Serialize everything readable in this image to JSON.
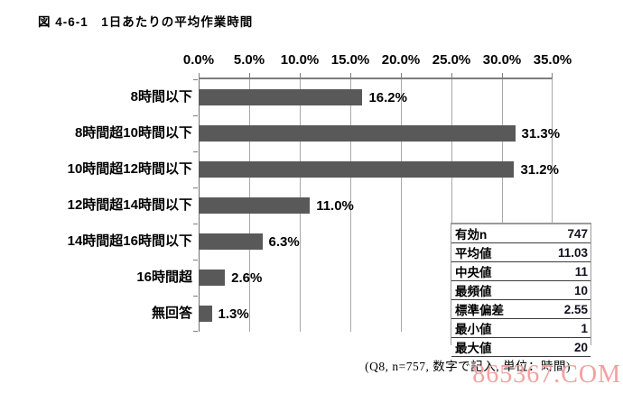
{
  "figure": {
    "title": "図 4-6-1　1日あたりの平均作業時間",
    "footnote": "(Q8, n=757, 数字で記入, 単位：時間)",
    "watermark": "865367.COM"
  },
  "chart_data": {
    "type": "bar",
    "orientation": "horizontal",
    "title": "1日あたりの平均作業時間",
    "categories": [
      "8時間以下",
      "8時間超10時間以下",
      "10時間超12時間以下",
      "12時間超14時間以下",
      "14時間超16時間以下",
      "16時間超",
      "無回答"
    ],
    "values": [
      16.2,
      31.3,
      31.2,
      11.0,
      6.3,
      2.6,
      1.3
    ],
    "value_labels": [
      "16.2%",
      "31.3%",
      "31.2%",
      "11.0%",
      "6.3%",
      "2.6%",
      "1.3%"
    ],
    "xlabel": "",
    "ylabel": "",
    "xlim": [
      0,
      35
    ],
    "x_ticks": [
      0,
      5,
      10,
      15,
      20,
      25,
      30,
      35
    ],
    "x_tick_labels": [
      "0.0%",
      "5.0%",
      "10.0%",
      "15.0%",
      "20.0%",
      "25.0%",
      "30.0%",
      "35.0%"
    ],
    "grid": true,
    "legend": false,
    "bar_color": "#595959"
  },
  "stats_table": {
    "rows": [
      {
        "label": "有効n",
        "value": "747"
      },
      {
        "label": "平均値",
        "value": "11.03"
      },
      {
        "label": "中央値",
        "value": "11"
      },
      {
        "label": "最頻値",
        "value": "10"
      },
      {
        "label": "標準偏差",
        "value": "2.55"
      },
      {
        "label": "最小値",
        "value": "1"
      },
      {
        "label": "最大値",
        "value": "20"
      }
    ]
  },
  "colors": {
    "bar": "#595959",
    "gridline": "#a8a8a8",
    "axis": "#7d7d7d",
    "watermark": "#f4a0a0"
  }
}
